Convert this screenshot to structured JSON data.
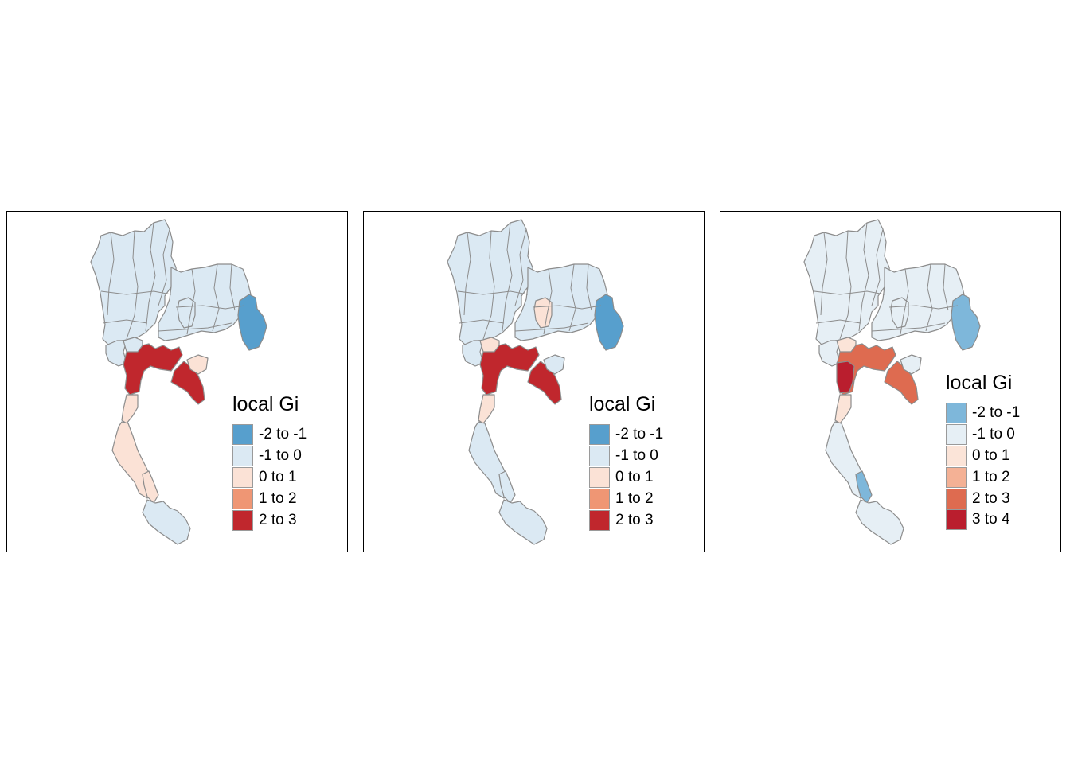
{
  "panels": [
    {
      "legend": {
        "title": "local Gi",
        "items": [
          {
            "label": "-2 to -1",
            "color": "#579fcd"
          },
          {
            "label": "-1 to 0",
            "color": "#dbe9f3"
          },
          {
            "label": "0 to 1",
            "color": "#fbe2d6"
          },
          {
            "label": "1 to 2",
            "color": "#ef9674"
          },
          {
            "label": "2 to 3",
            "color": "#c0272d"
          }
        ]
      },
      "regions": {
        "north": "#dbe9f3",
        "northeast": "#dbe9f3",
        "east_edge": "#579fcd",
        "center_west": "#dbe9f3",
        "center_pocket": "#dbe9f3",
        "west_small": "#dbe9f3",
        "central": "#c0272d",
        "east": "#c0272d",
        "east_north": "#fbe2d6",
        "isthmus": "#fbe2d6",
        "south": "#fbe2d6",
        "south_east": "#fbe2d6",
        "deep_south": "#dbe9f3"
      }
    },
    {
      "legend": {
        "title": "local Gi",
        "items": [
          {
            "label": "-2 to -1",
            "color": "#579fcd"
          },
          {
            "label": "-1 to 0",
            "color": "#dbe9f3"
          },
          {
            "label": "0 to 1",
            "color": "#fbe2d6"
          },
          {
            "label": "1 to 2",
            "color": "#ef9674"
          },
          {
            "label": "2 to 3",
            "color": "#c0272d"
          }
        ]
      },
      "regions": {
        "north": "#dbe9f3",
        "northeast": "#dbe9f3",
        "east_edge": "#579fcd",
        "center_west": "#dbe9f3",
        "center_pocket": "#fbe2d6",
        "west_small": "#fbe2d6",
        "central": "#c0272d",
        "east": "#c0272d",
        "east_north": "#dbe9f3",
        "isthmus": "#fbe2d6",
        "south": "#dbe9f3",
        "south_east": "#dbe9f3",
        "deep_south": "#dbe9f3"
      }
    },
    {
      "legend": {
        "title": "local Gi",
        "items": [
          {
            "label": "-2 to -1",
            "color": "#7eb7da"
          },
          {
            "label": "-1 to 0",
            "color": "#e6eff5"
          },
          {
            "label": "0 to 1",
            "color": "#fbe4d8"
          },
          {
            "label": "1 to 2",
            "color": "#f4b195"
          },
          {
            "label": "2 to 3",
            "color": "#de6b50"
          },
          {
            "label": "3 to 4",
            "color": "#ba1e2e"
          }
        ]
      },
      "regions": {
        "north": "#e6eff5",
        "northeast": "#e6eff5",
        "east_edge": "#7eb7da",
        "center_west": "#e6eff5",
        "center_pocket": "#e6eff5",
        "west_small": "#fbe4d8",
        "central": "#de6b50",
        "central_west": "#ba1e2e",
        "east": "#de6b50",
        "east_north": "#e6eff5",
        "isthmus": "#fbe4d8",
        "south": "#e6eff5",
        "south_east": "#7eb7da",
        "deep_south": "#e6eff5"
      }
    }
  ]
}
